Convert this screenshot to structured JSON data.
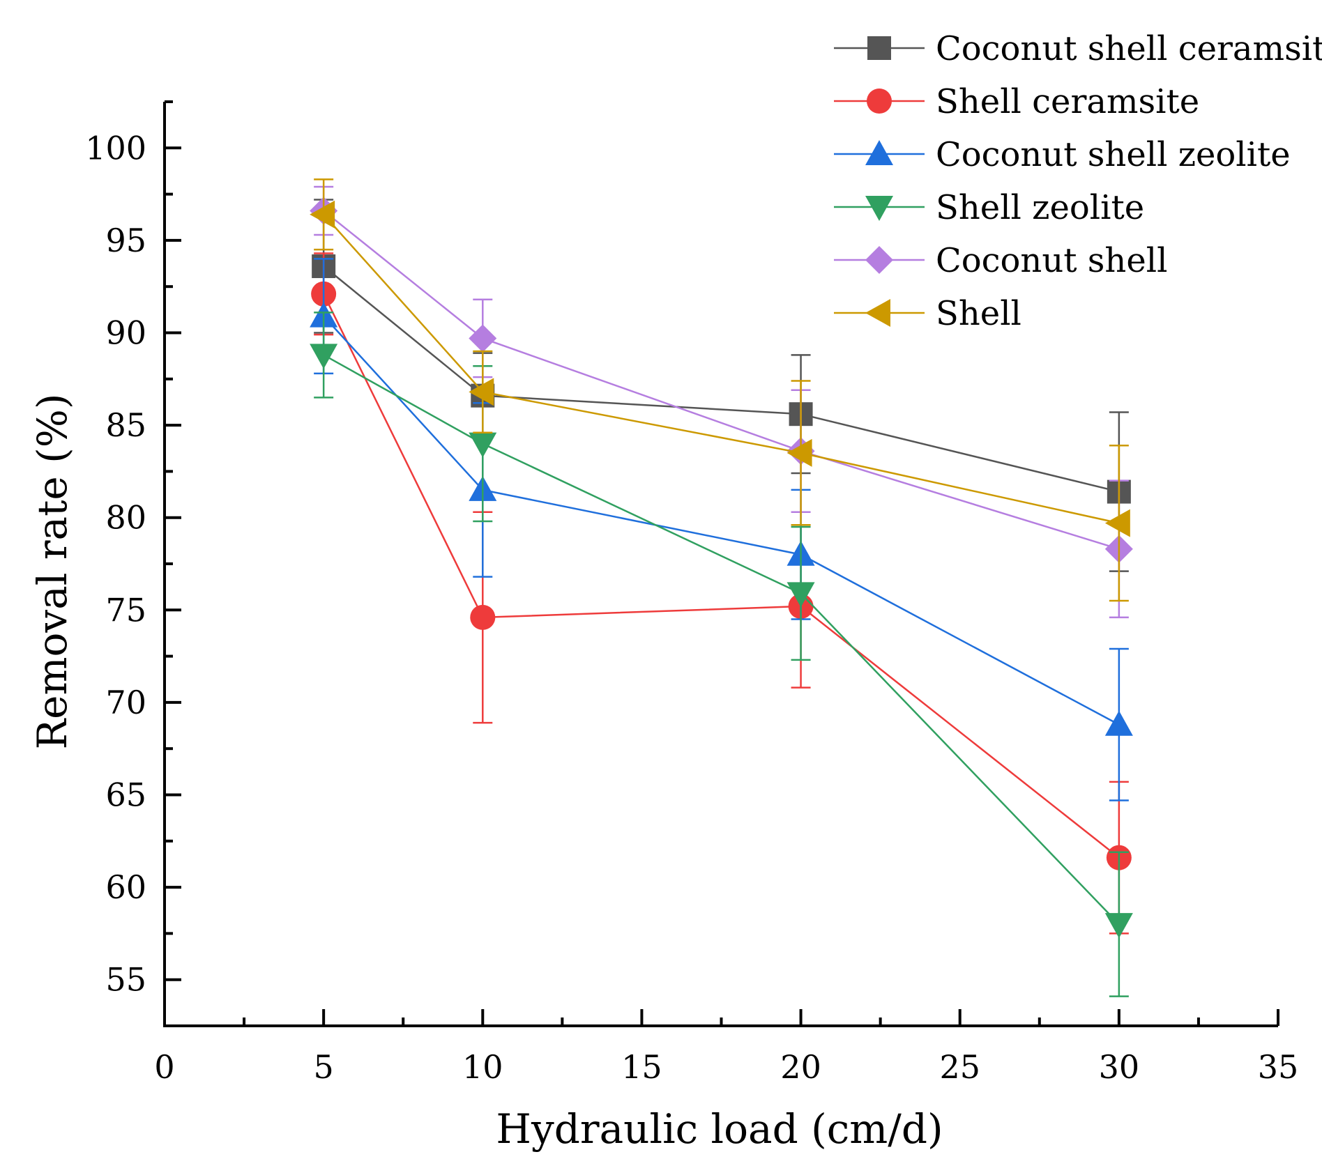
{
  "chart_data": {
    "type": "line",
    "title": "",
    "xlabel": "Hydraulic load (cm/d)",
    "ylabel": "Removal rate (%)",
    "xlim": [
      0,
      35
    ],
    "ylim": [
      52.5,
      102.5
    ],
    "x_ticks": [
      0,
      5,
      10,
      15,
      20,
      25,
      30,
      35
    ],
    "y_ticks": [
      55,
      60,
      65,
      70,
      75,
      80,
      85,
      90,
      95,
      100
    ],
    "x": [
      5,
      10,
      20,
      30
    ],
    "grid": false,
    "legend_position": "top-right",
    "series": [
      {
        "name": "Coconut shell ceramsite",
        "color": "#555555",
        "marker": "square",
        "values": [
          93.6,
          86.6,
          85.6,
          81.4
        ],
        "errors": [
          3.6,
          2.3,
          3.2,
          4.3
        ]
      },
      {
        "name": "Shell ceramsite",
        "color": "#ee3b3b",
        "marker": "circle",
        "values": [
          92.1,
          74.6,
          75.2,
          61.6
        ],
        "errors": [
          2.2,
          5.7,
          4.4,
          4.1
        ]
      },
      {
        "name": "Coconut shell zeolite",
        "color": "#1f6fdc",
        "marker": "triangle-up",
        "values": [
          90.9,
          81.5,
          78.0,
          68.8
        ],
        "errors": [
          3.1,
          4.7,
          3.5,
          4.1
        ]
      },
      {
        "name": "Shell zeolite",
        "color": "#30a060",
        "marker": "triangle-down",
        "values": [
          88.8,
          84.0,
          75.9,
          58.0
        ],
        "errors": [
          2.3,
          4.2,
          3.6,
          3.9
        ]
      },
      {
        "name": "Coconut shell",
        "color": "#b57ee0",
        "marker": "diamond",
        "values": [
          96.6,
          89.7,
          83.6,
          78.3
        ],
        "errors": [
          1.3,
          2.1,
          3.3,
          3.7
        ]
      },
      {
        "name": "Shell",
        "color": "#cc9900",
        "marker": "triangle-left",
        "values": [
          96.4,
          86.8,
          83.5,
          79.7
        ],
        "errors": [
          1.9,
          2.2,
          3.9,
          4.2
        ]
      }
    ]
  }
}
